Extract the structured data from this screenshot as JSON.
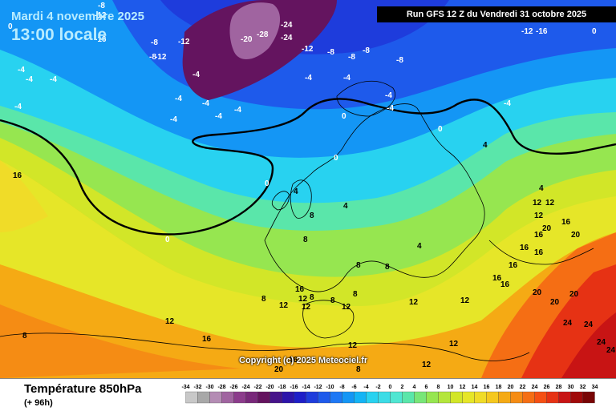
{
  "header": {
    "date": "Mardi 4 novembre 2025",
    "time": "13:00 locale"
  },
  "run_info": "Run GFS 12 Z du Vendredi 31 octobre 2025",
  "copyright": "Copyright (c) 2025 Meteociel.fr",
  "parameter": {
    "title": "Température 850hPa",
    "subtitle": "(+ 96h)"
  },
  "legend": {
    "ticks": [
      "-34",
      "-32",
      "-30",
      "-28",
      "-26",
      "-24",
      "-22",
      "-20",
      "-18",
      "-16",
      "-14",
      "-12",
      "-10",
      "-8",
      "-6",
      "-4",
      "-2",
      "0",
      "2",
      "4",
      "6",
      "8",
      "10",
      "12",
      "14",
      "16",
      "18",
      "20",
      "22",
      "24",
      "26",
      "28",
      "30",
      "32",
      "34"
    ],
    "colors": [
      "#c8c8c8",
      "#a8a8a8",
      "#b48cb4",
      "#a064a0",
      "#8c3c8c",
      "#78287a",
      "#64145f",
      "#46138a",
      "#2d14aa",
      "#1e1ec8",
      "#1e3cdc",
      "#1e5aeb",
      "#1e78f5",
      "#1496f5",
      "#14b4f5",
      "#28d2f0",
      "#3cdce6",
      "#50e6d2",
      "#5ae6aa",
      "#78e678",
      "#96e650",
      "#b4e63c",
      "#d2e628",
      "#e6e628",
      "#f0dc28",
      "#f5c81e",
      "#f5aa14",
      "#f58c14",
      "#f56e14",
      "#f55014",
      "#e63214",
      "#c81414",
      "#a00a0a",
      "#780505",
      "#000000"
    ]
  },
  "map_labels": [
    {
      "v": "-8"
    },
    {
      "v": "-12"
    },
    {
      "v": "-16"
    },
    {
      "v": "0"
    },
    {
      "v": "-8"
    },
    {
      "v": "-12"
    },
    {
      "v": "-8"
    },
    {
      "v": "-12"
    },
    {
      "v": "-4"
    },
    {
      "v": "-4"
    },
    {
      "v": "-4"
    },
    {
      "v": "-4"
    },
    {
      "v": "-20"
    },
    {
      "v": "-28"
    },
    {
      "v": "-24"
    },
    {
      "v": "-24"
    },
    {
      "v": "-12"
    },
    {
      "v": "-8"
    },
    {
      "v": "-8"
    },
    {
      "v": "-8"
    },
    {
      "v": "-8"
    },
    {
      "v": "-12"
    },
    {
      "v": "-16"
    },
    {
      "v": "0"
    },
    {
      "v": "-4"
    },
    {
      "v": "-4"
    },
    {
      "v": "-4"
    },
    {
      "v": "-4"
    },
    {
      "v": "-4"
    },
    {
      "v": "-4"
    },
    {
      "v": "-4"
    },
    {
      "v": "-4"
    },
    {
      "v": "-4"
    },
    {
      "v": "-4"
    },
    {
      "v": "-4"
    },
    {
      "v": "0"
    },
    {
      "v": "0"
    },
    {
      "v": "4"
    },
    {
      "v": "0"
    },
    {
      "v": "16"
    },
    {
      "v": "0"
    },
    {
      "v": "4"
    },
    {
      "v": "4"
    },
    {
      "v": "0"
    },
    {
      "v": "8"
    },
    {
      "v": "4"
    },
    {
      "v": "4"
    },
    {
      "v": "12"
    },
    {
      "v": "12"
    },
    {
      "v": "12"
    },
    {
      "v": "16"
    },
    {
      "v": "20"
    },
    {
      "v": "20"
    },
    {
      "v": "16"
    },
    {
      "v": "16"
    },
    {
      "v": "16"
    },
    {
      "v": "16"
    },
    {
      "v": "16"
    },
    {
      "v": "16"
    },
    {
      "v": "20"
    },
    {
      "v": "20"
    },
    {
      "v": "20"
    },
    {
      "v": "24"
    },
    {
      "v": "24"
    },
    {
      "v": "24"
    },
    {
      "v": "24"
    },
    {
      "v": "8"
    },
    {
      "v": "8"
    },
    {
      "v": "8"
    },
    {
      "v": "8"
    },
    {
      "v": "16"
    },
    {
      "v": "12"
    },
    {
      "v": "12"
    },
    {
      "v": "12"
    },
    {
      "v": "8"
    },
    {
      "v": "8"
    },
    {
      "v": "8"
    },
    {
      "v": "12"
    },
    {
      "v": "12"
    },
    {
      "v": "12"
    },
    {
      "v": "16"
    },
    {
      "v": "12"
    },
    {
      "v": "20"
    },
    {
      "v": "12"
    },
    {
      "v": "16"
    },
    {
      "v": "12"
    },
    {
      "v": "12"
    },
    {
      "v": "8"
    },
    {
      "v": "8"
    }
  ]
}
